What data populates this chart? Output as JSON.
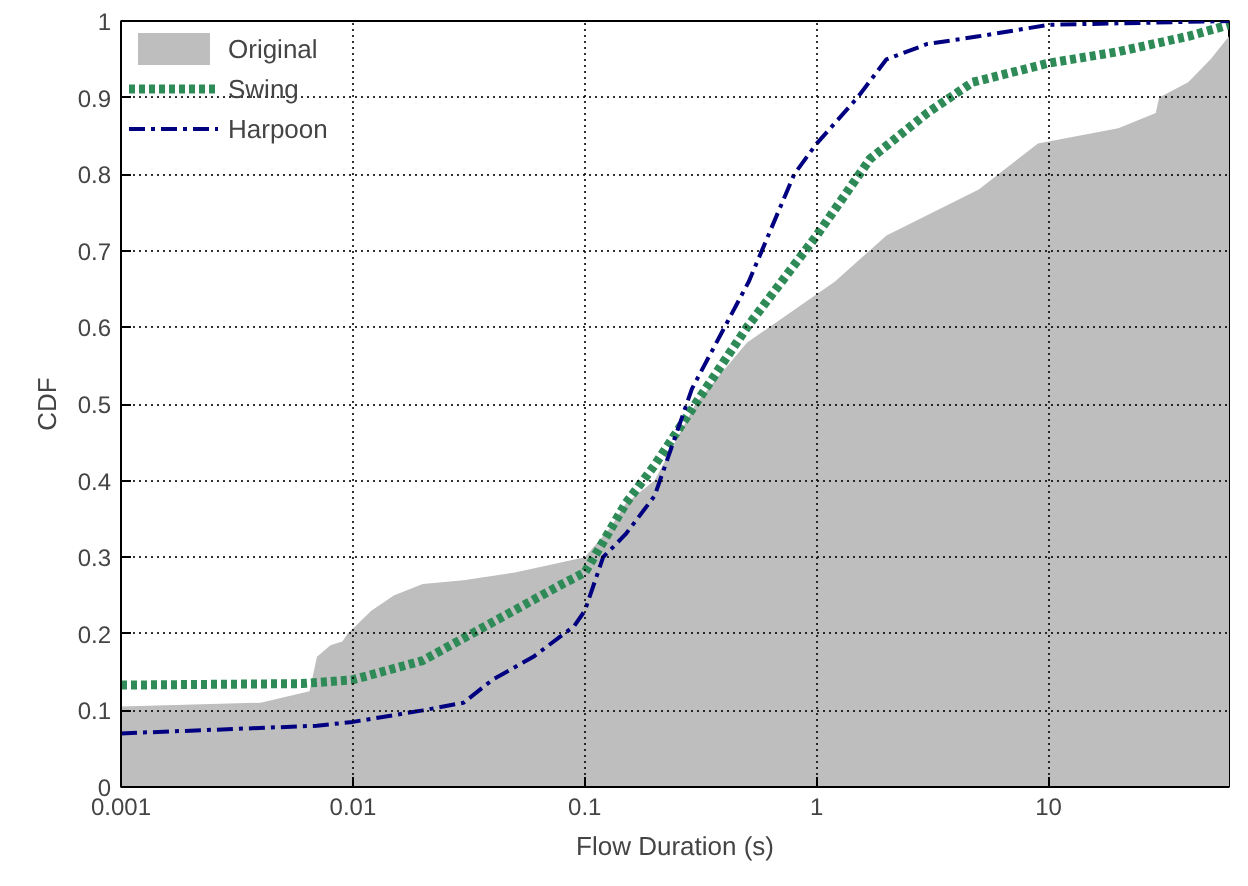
{
  "chart_data": {
    "type": "line",
    "xlabel": "Flow Duration (s)",
    "ylabel": "CDF",
    "log": "x",
    "xlim": [
      0.001,
      60
    ],
    "ylim": [
      0,
      1
    ],
    "xticks": [
      0.001,
      0.01,
      0.1,
      1,
      10
    ],
    "yticks": [
      0,
      0.1,
      0.2,
      0.3,
      0.4,
      0.5,
      0.6,
      0.7,
      0.8,
      0.9,
      1
    ],
    "grid": true,
    "legend": "top left",
    "series": [
      {
        "name": "Original",
        "type": "area",
        "color": "#bebebe",
        "x": [
          0.001,
          0.004,
          0.0065,
          0.007,
          0.008,
          0.009,
          0.0095,
          0.012,
          0.015,
          0.02,
          0.03,
          0.05,
          0.1,
          0.13,
          0.15,
          0.2,
          0.3,
          0.5,
          1.2,
          2,
          5,
          9,
          20,
          29,
          30,
          40,
          50,
          60
        ],
        "values": [
          0.105,
          0.11,
          0.125,
          0.17,
          0.185,
          0.19,
          0.2,
          0.23,
          0.25,
          0.265,
          0.27,
          0.28,
          0.3,
          0.34,
          0.37,
          0.4,
          0.5,
          0.58,
          0.66,
          0.72,
          0.78,
          0.84,
          0.86,
          0.88,
          0.9,
          0.92,
          0.95,
          0.98
        ]
      },
      {
        "name": "Swing",
        "color": "#2e8b57",
        "line_style": "dotted",
        "x": [
          0.001,
          0.006,
          0.01,
          0.02,
          0.04,
          0.08,
          0.1,
          0.12,
          0.15,
          0.2,
          0.3,
          0.5,
          1,
          1.7,
          3,
          4.7,
          10,
          20,
          40,
          60
        ],
        "values": [
          0.133,
          0.135,
          0.14,
          0.165,
          0.215,
          0.265,
          0.28,
          0.32,
          0.37,
          0.42,
          0.5,
          0.6,
          0.72,
          0.82,
          0.88,
          0.92,
          0.945,
          0.96,
          0.98,
          0.995
        ]
      },
      {
        "name": "Harpoon",
        "color": "#000080",
        "line_style": "dashdot",
        "x": [
          0.001,
          0.007,
          0.01,
          0.02,
          0.03,
          0.04,
          0.06,
          0.09,
          0.1,
          0.12,
          0.15,
          0.2,
          0.29,
          0.51,
          0.8,
          1,
          1.5,
          2,
          3,
          5,
          10,
          60
        ],
        "values": [
          0.07,
          0.08,
          0.085,
          0.1,
          0.11,
          0.14,
          0.17,
          0.21,
          0.23,
          0.3,
          0.33,
          0.38,
          0.52,
          0.66,
          0.8,
          0.84,
          0.9,
          0.95,
          0.97,
          0.98,
          0.995,
          1.0
        ]
      }
    ]
  }
}
